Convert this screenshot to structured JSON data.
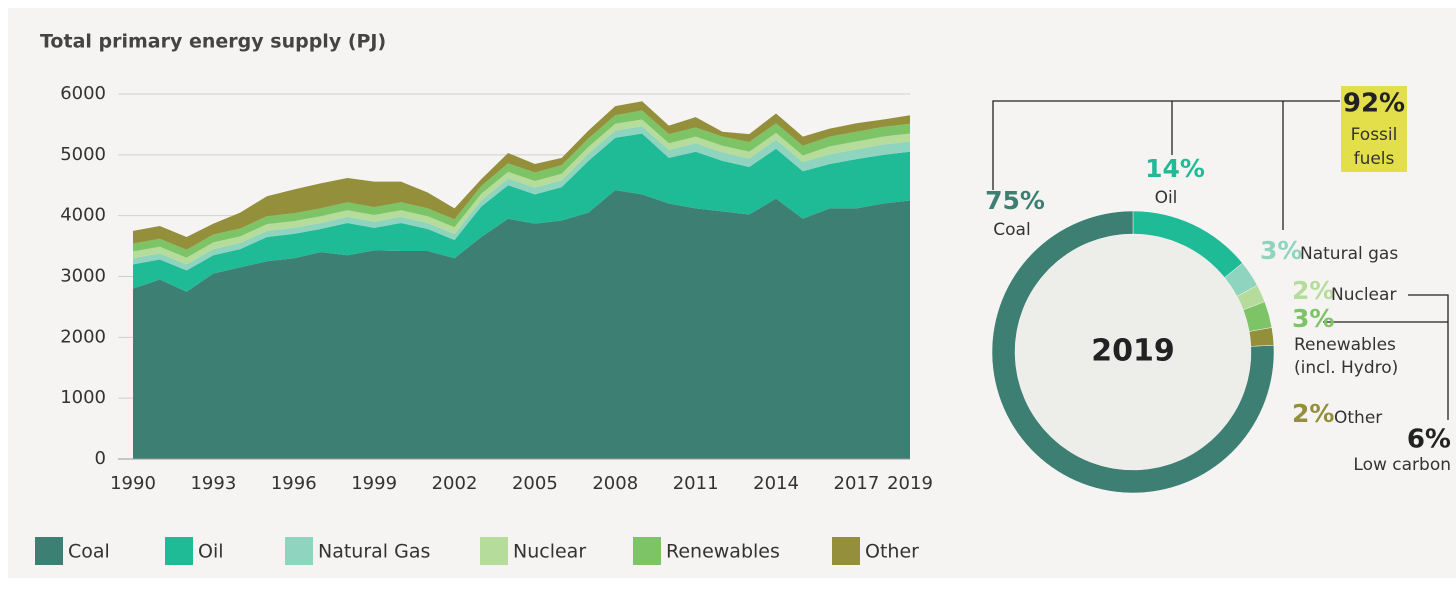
{
  "chart_data": [
    {
      "type": "area",
      "title": "Total primary energy supply (PJ)",
      "x": [
        1990,
        1991,
        1992,
        1993,
        1994,
        1995,
        1996,
        1997,
        1998,
        1999,
        2000,
        2001,
        2002,
        2003,
        2004,
        2005,
        2006,
        2007,
        2008,
        2009,
        2010,
        2011,
        2012,
        2013,
        2014,
        2015,
        2016,
        2017,
        2018,
        2019
      ],
      "xlim": [
        1990,
        2019
      ],
      "xticks": [
        1990,
        1993,
        1996,
        1999,
        2002,
        2005,
        2008,
        2011,
        2014,
        2017,
        2019
      ],
      "ylim": [
        0,
        6000
      ],
      "yticks": [
        0,
        1000,
        2000,
        3000,
        4000,
        5000,
        6000
      ],
      "grid": true,
      "stacked": true,
      "series": [
        {
          "name": "Coal",
          "color": "#3d7f72",
          "values": [
            2800,
            2950,
            2750,
            3050,
            3150,
            3250,
            3300,
            3400,
            3350,
            3430,
            3420,
            3420,
            3300,
            3650,
            3950,
            3870,
            3920,
            4050,
            4420,
            4350,
            4200,
            4120,
            4070,
            4020,
            4280,
            3950,
            4120,
            4120,
            4200,
            4250
          ]
        },
        {
          "name": "Oil",
          "color": "#1fba96",
          "values": [
            400,
            330,
            350,
            300,
            300,
            400,
            400,
            380,
            530,
            370,
            460,
            360,
            300,
            500,
            550,
            480,
            550,
            850,
            860,
            1000,
            750,
            930,
            830,
            780,
            820,
            780,
            730,
            810,
            800,
            800
          ]
        },
        {
          "name": "Natural Gas",
          "color": "#8fd4be",
          "values": [
            100,
            100,
            100,
            100,
            100,
            100,
            100,
            100,
            100,
            100,
            100,
            100,
            100,
            100,
            110,
            110,
            110,
            120,
            120,
            120,
            130,
            140,
            140,
            140,
            150,
            150,
            160,
            160,
            170,
            170
          ]
        },
        {
          "name": "Nuclear",
          "color": "#b5dc9a",
          "values": [
            110,
            110,
            110,
            110,
            110,
            110,
            110,
            110,
            110,
            110,
            110,
            110,
            110,
            110,
            110,
            110,
            110,
            110,
            110,
            110,
            110,
            110,
            110,
            110,
            110,
            110,
            130,
            130,
            130,
            130
          ]
        },
        {
          "name": "Renewables",
          "color": "#7cc465",
          "values": [
            130,
            130,
            130,
            130,
            130,
            130,
            130,
            130,
            130,
            130,
            130,
            130,
            130,
            130,
            140,
            140,
            140,
            140,
            140,
            150,
            150,
            150,
            150,
            160,
            160,
            160,
            160,
            160,
            160,
            160
          ]
        },
        {
          "name": "Other",
          "color": "#948f3b",
          "values": [
            210,
            210,
            210,
            180,
            260,
            330,
            390,
            410,
            400,
            420,
            340,
            260,
            180,
            110,
            170,
            140,
            120,
            130,
            150,
            150,
            140,
            170,
            80,
            130,
            160,
            150,
            130,
            140,
            120,
            140
          ]
        }
      ]
    },
    {
      "type": "pie",
      "title": "2019",
      "categories": [
        [
          "Oil"
        ],
        [
          "Natural gas"
        ],
        [
          "Nuclear"
        ],
        [
          "Renewables",
          "(incl. Hydro)"
        ],
        [
          "Other"
        ],
        [
          "Coal"
        ]
      ],
      "values": [
        14,
        3,
        2,
        3,
        2,
        75
      ],
      "value_labels": [
        "14%",
        "3%",
        "2%",
        "3%",
        "2%",
        "75%"
      ],
      "colors": [
        "#1fba96",
        "#8fd4be",
        "#b5dc9a",
        "#7cc465",
        "#948f3b",
        "#3d7f72"
      ],
      "annotations": [
        {
          "label": "92%",
          "text": [
            "Fossil",
            "fuels"
          ],
          "color": "#e3df4a"
        },
        {
          "label": "6%",
          "text": [
            "Low carbon"
          ]
        }
      ]
    }
  ]
}
